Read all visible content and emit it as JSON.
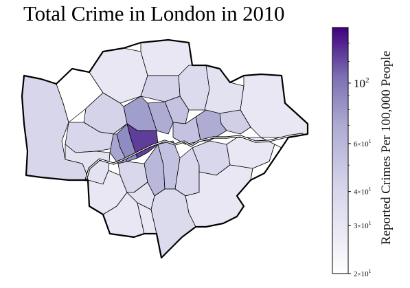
{
  "title": "Total Crime in London in 2010",
  "colorbar": {
    "label": "Reported Crimes Per 100,000 People",
    "scale": "log",
    "min": 20,
    "max": 160,
    "ticks": [
      {
        "value": 20,
        "mantissa": "2",
        "sep": "×",
        "base": "10",
        "exp": "1"
      },
      {
        "value": 30,
        "mantissa": "3",
        "sep": "×",
        "base": "10",
        "exp": "1"
      },
      {
        "value": 40,
        "mantissa": "4",
        "sep": "×",
        "base": "10",
        "exp": "1"
      },
      {
        "value": 60,
        "mantissa": "6",
        "sep": "×",
        "base": "10",
        "exp": "1"
      },
      {
        "value": 100,
        "mantissa": "",
        "sep": "",
        "base": "10",
        "exp": "2"
      }
    ],
    "colors_light_to_dark": [
      "#ffffff",
      "#3f007d"
    ]
  },
  "map": {
    "type": "choropleth",
    "region": "Greater London boroughs",
    "thames_visible": true
  }
}
